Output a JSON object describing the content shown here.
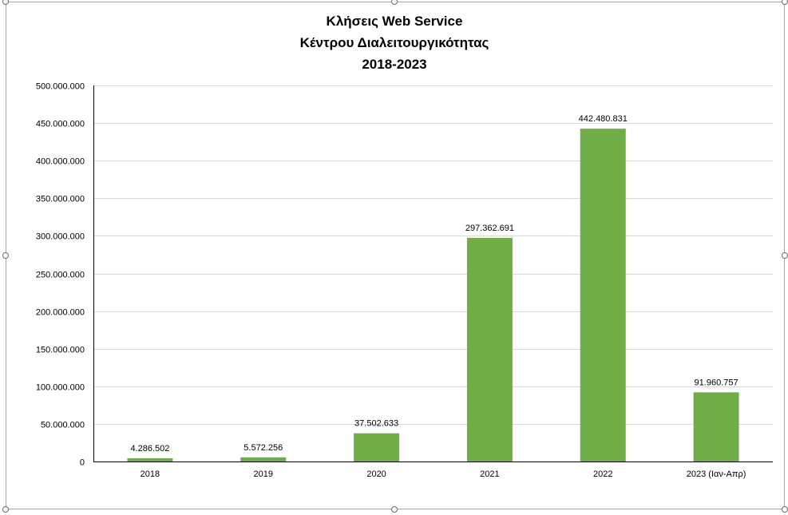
{
  "chart_data": {
    "type": "bar",
    "title": [
      "Κλήσεις Web Service",
      "Κέντρου Διαλειτουργικότητας",
      "2018-2023"
    ],
    "categories": [
      "2018",
      "2019",
      "2020",
      "2021",
      "2022",
      "2023 (Ιαν-Απρ)"
    ],
    "values": [
      4286502,
      5572256,
      37502633,
      297362691,
      442480831,
      91960757
    ],
    "value_labels": [
      "4.286.502",
      "5.572.256",
      "37.502.633",
      "297.362.691",
      "442.480.831",
      "91.960.757"
    ],
    "yticks": [
      0,
      50000000,
      100000000,
      150000000,
      200000000,
      250000000,
      300000000,
      350000000,
      400000000,
      450000000,
      500000000
    ],
    "ytick_labels": [
      "0",
      "50.000.000",
      "100.000.000",
      "150.000.000",
      "200.000.000",
      "250.000.000",
      "300.000.000",
      "350.000.000",
      "400.000.000",
      "450.000.000",
      "500.000.000"
    ],
    "ylim": [
      0,
      500000000
    ],
    "grid": true,
    "bar_color": "#70ad47",
    "grid_color": "#d9d9d9"
  }
}
